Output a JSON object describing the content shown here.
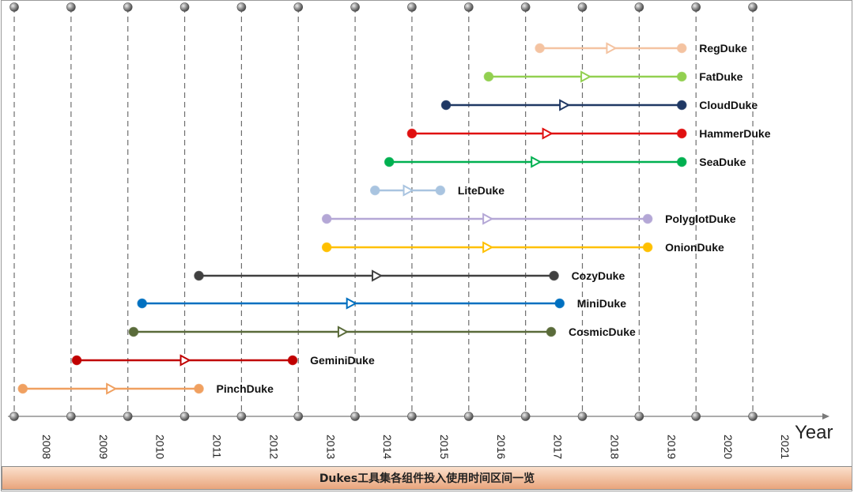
{
  "chart_data": {
    "type": "timeline",
    "title": "",
    "caption": "Dukes工具集各组件投入使用时间区间一览",
    "xlabel": "Year",
    "ylabel": "",
    "x_ticks": [
      "2008",
      "2009",
      "2010",
      "2011",
      "2012",
      "2013",
      "2014",
      "2015",
      "2016",
      "2017",
      "2018",
      "2019",
      "2020",
      "2021"
    ],
    "grid": true,
    "series": [
      {
        "name": "RegDuke",
        "start": 2017.25,
        "end": 2019.75,
        "color": "#f4c3a1"
      },
      {
        "name": "FatDuke",
        "start": 2016.35,
        "end": 2019.75,
        "color": "#92d050"
      },
      {
        "name": "CloudDuke",
        "start": 2015.6,
        "end": 2019.75,
        "color": "#1f3864"
      },
      {
        "name": "HammerDuke",
        "start": 2015.0,
        "end": 2019.75,
        "color": "#e01010"
      },
      {
        "name": "SeaDuke",
        "start": 2014.6,
        "end": 2019.75,
        "color": "#00b050"
      },
      {
        "name": "LiteDuke",
        "start": 2014.35,
        "end": 2015.5,
        "color": "#a9c4e0"
      },
      {
        "name": "PolyglotDuke",
        "start": 2013.5,
        "end": 2019.15,
        "color": "#b4a7d6"
      },
      {
        "name": "OnionDuke",
        "start": 2013.5,
        "end": 2019.15,
        "color": "#ffc000"
      },
      {
        "name": "CozyDuke",
        "start": 2011.25,
        "end": 2017.5,
        "color": "#404040"
      },
      {
        "name": "MiniDuke",
        "start": 2010.25,
        "end": 2017.6,
        "color": "#0070c0"
      },
      {
        "name": "CosmicDuke",
        "start": 2010.1,
        "end": 2017.45,
        "color": "#5a6b3a"
      },
      {
        "name": "GeminiDuke",
        "start": 2009.1,
        "end": 2012.9,
        "color": "#c00000"
      },
      {
        "name": "PinchDuke",
        "start": 2008.15,
        "end": 2011.25,
        "color": "#f0a060"
      }
    ]
  }
}
